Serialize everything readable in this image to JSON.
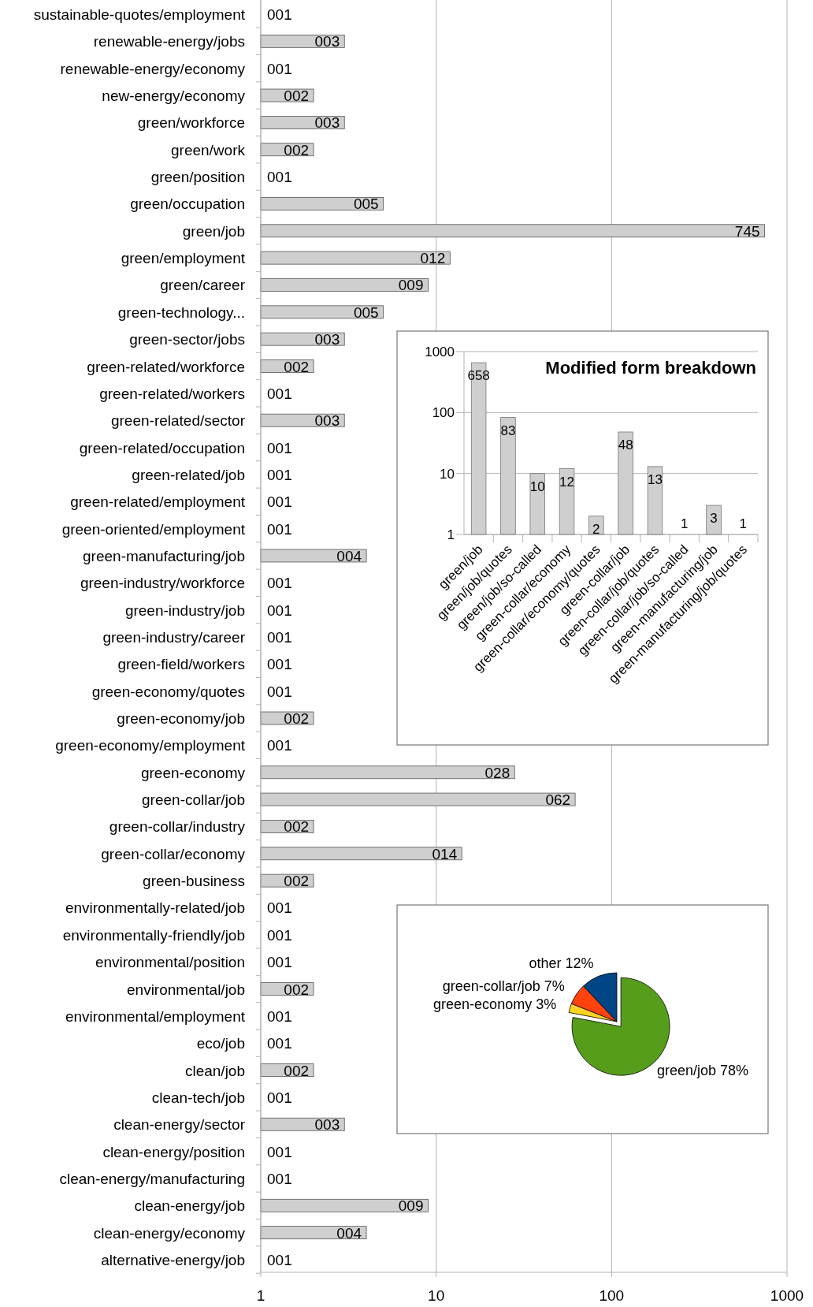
{
  "chart_data": [
    {
      "type": "bar",
      "orientation": "horizontal",
      "log": "x",
      "grid": "x",
      "color": "#cfcfcf",
      "xlim": [
        1,
        1000
      ],
      "xticks": [
        1,
        10,
        100,
        1000
      ],
      "categories": [
        "sustainable-quotes/employment",
        "renewable-energy/jobs",
        "renewable-energy/economy",
        "new-energy/economy",
        "green/workforce",
        "green/work",
        "green/position",
        "green/occupation",
        "green/job",
        "green/employment",
        "green/career",
        "green-technology...",
        "green-sector/jobs",
        "green-related/workforce",
        "green-related/workers",
        "green-related/sector",
        "green-related/occupation",
        "green-related/job",
        "green-related/employment",
        "green-oriented/employment",
        "green-manufacturing/job",
        "green-industry/workforce",
        "green-industry/job",
        "green-industry/career",
        "green-field/workers",
        "green-economy/quotes",
        "green-economy/job",
        "green-economy/employment",
        "green-economy",
        "green-collar/job",
        "green-collar/industry",
        "green-collar/economy",
        "green-business",
        "environmentally-related/job",
        "environmentally-friendly/job",
        "environmental/position",
        "environmental/job",
        "environmental/employment",
        "eco/job",
        "clean/job",
        "clean-tech/job",
        "clean-energy/sector",
        "clean-energy/position",
        "clean-energy/manufacturing",
        "clean-energy/job",
        "clean-energy/economy",
        "alternative-energy/job"
      ],
      "values": [
        1,
        3,
        1,
        2,
        3,
        2,
        1,
        5,
        745,
        12,
        9,
        5,
        3,
        2,
        1,
        3,
        1,
        1,
        1,
        1,
        4,
        1,
        1,
        1,
        1,
        1,
        2,
        1,
        28,
        62,
        2,
        14,
        2,
        1,
        1,
        1,
        2,
        1,
        1,
        2,
        1,
        3,
        1,
        1,
        9,
        4,
        1
      ],
      "value_labels": [
        "001",
        "003",
        "001",
        "002",
        "003",
        "002",
        "001",
        "005",
        "745",
        "012",
        "009",
        "005",
        "003",
        "002",
        "001",
        "003",
        "001",
        "001",
        "001",
        "001",
        "004",
        "001",
        "001",
        "001",
        "001",
        "001",
        "002",
        "001",
        "028",
        "062",
        "002",
        "014",
        "002",
        "001",
        "001",
        "001",
        "002",
        "001",
        "001",
        "002",
        "001",
        "003",
        "001",
        "001",
        "009",
        "004",
        "001"
      ]
    },
    {
      "type": "bar",
      "title": "Modified form breakdown",
      "log": true,
      "grid": "y",
      "color": "#cfcfcf",
      "ylim": [
        1,
        1000
      ],
      "yticks": [
        1,
        10,
        100,
        1000
      ],
      "data_labels": true,
      "categories": [
        "green/job",
        "green/job/quotes",
        "green/job/so-called",
        "green-collar/economy",
        "green-collar/economy/quotes",
        "green-collar/job",
        "green-collar/job/quotes",
        "green-collar/job/so-called",
        "green-manufacturing/job",
        "green-manufacturing/job/quotes"
      ],
      "values": [
        658,
        83,
        10,
        12,
        2,
        48,
        13,
        1,
        3,
        1
      ]
    },
    {
      "type": "pie",
      "categories": [
        "green/job",
        "green-economy",
        "green-collar/job",
        "other"
      ],
      "values": [
        78,
        3,
        7,
        12
      ],
      "colors": [
        "#579d1c",
        "#ffd320",
        "#ff420e",
        "#004586"
      ],
      "value_labels": [
        "78%",
        "3%",
        "7%",
        "12%"
      ]
    }
  ]
}
